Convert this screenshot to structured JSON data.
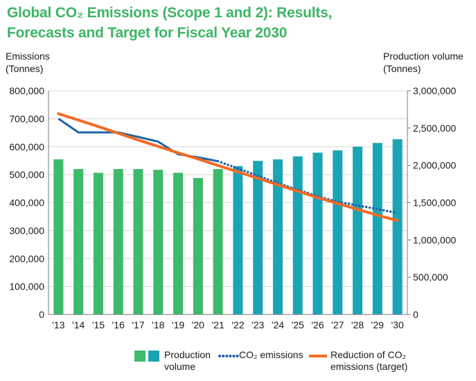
{
  "title": {
    "line1": "Global CO₂ Emissions (Scope 1 and 2): Results,",
    "line2": "Forecasts and Target for Fiscal Year 2030"
  },
  "axes": {
    "left_title_line1": "Emissions",
    "left_title_line2": "(Tonnes)",
    "right_title_line1": "Production volume",
    "right_title_line2": "(Tonnes)"
  },
  "legend": {
    "production_line1": "Production",
    "production_line2": "volume",
    "co2": "CO₂ emissions",
    "target_line1": "Reduction of CO₂",
    "target_line2": "emissions (target)"
  },
  "colors": {
    "title": "#3db565",
    "production_results": "#3dba6a",
    "production_forecast": "#1aa5b5",
    "co2_emissions": "#1f63a8",
    "target": "#f26b24",
    "grid": "#d8d8d8",
    "axis": "#7a7a7a"
  },
  "chart_data": {
    "type": "bar",
    "title": "Global CO₂ Emissions (Scope 1 and 2): Results, Forecasts and Target for Fiscal Year 2030",
    "categories": [
      "'13",
      "'14",
      "'15",
      "'16",
      "'17",
      "'18",
      "'19",
      "'20",
      "'21",
      "'22",
      "'23",
      "'24",
      "'25",
      "'26",
      "'27",
      "'28",
      "'29",
      "'30"
    ],
    "ylabel": "Emissions (Tonnes)",
    "ylim": [
      0,
      800000
    ],
    "yticks": [
      "0",
      "100,000",
      "200,000",
      "300,000",
      "400,000",
      "500,000",
      "600,000",
      "700,000",
      "800,000"
    ],
    "y2label": "Production volume (Tonnes)",
    "y2lim": [
      0,
      3000000
    ],
    "y2ticks": [
      "0",
      "500,000",
      "1,000,000",
      "1,500,000",
      "2,000,000",
      "2,500,000",
      "3,000,000"
    ],
    "grid": true,
    "legend_position": "bottom",
    "series": [
      {
        "name": "Production volume",
        "type": "bar",
        "axis": "right",
        "values": [
          2080000,
          1950000,
          1900000,
          1950000,
          1950000,
          1940000,
          1900000,
          1830000,
          1950000,
          1990000,
          2060000,
          2080000,
          2120000,
          2170000,
          2200000,
          2250000,
          2300000,
          2350000
        ],
        "results_until": "'21"
      },
      {
        "name": "CO₂ emissions",
        "type": "line",
        "axis": "left",
        "values": [
          700000,
          651000,
          651000,
          651000,
          635000,
          618000,
          573000,
          562000,
          548000,
          522000,
          496000,
          470000,
          446000,
          423000,
          403000,
          390000,
          377000,
          363000
        ],
        "results_until": "'21",
        "forecast_style": "dotted"
      },
      {
        "name": "Reduction of CO₂ emissions (target)",
        "type": "line",
        "axis": "left",
        "values": [
          718000,
          695000,
          672000,
          648000,
          624000,
          601000,
          578000,
          556000,
          533000,
          510000,
          487000,
          464000,
          441000,
          418000,
          397000,
          376000,
          355000,
          336000
        ]
      }
    ]
  }
}
